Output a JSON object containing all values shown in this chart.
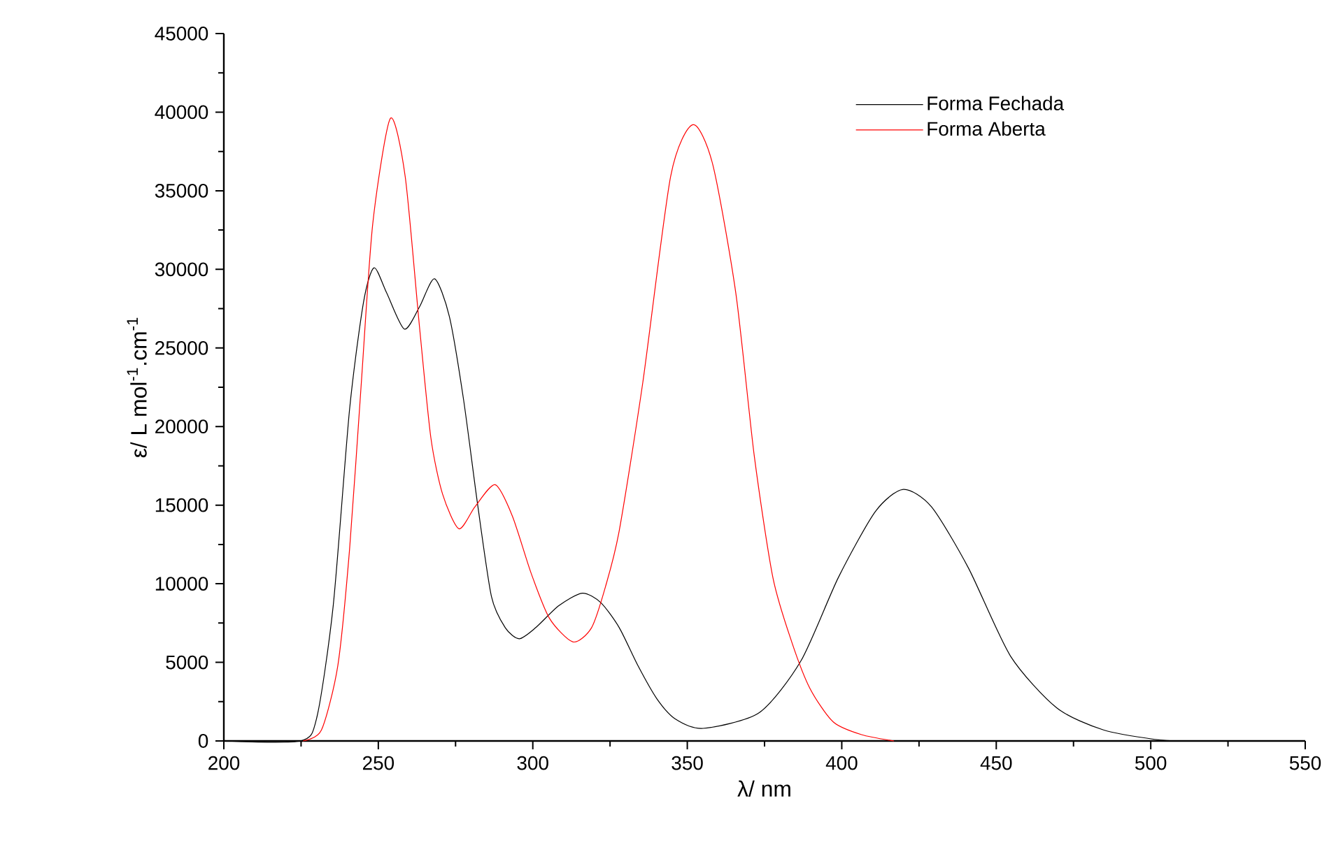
{
  "chart_data": {
    "type": "line",
    "xlabel": "λ/ nm",
    "ylabel": "ε/ L mol$^{-1}$.cm$^{-1}$",
    "xlim": [
      200,
      550
    ],
    "ylim": [
      0,
      45000
    ],
    "xticks": [
      200,
      250,
      300,
      350,
      400,
      450,
      500,
      550
    ],
    "yticks": [
      0,
      5000,
      10000,
      15000,
      20000,
      25000,
      30000,
      35000,
      40000,
      45000
    ],
    "grid": false,
    "legend": "top right",
    "marker": "none",
    "line_style": "solid",
    "series": [
      {
        "name": "Forma Fechada",
        "color": "#000000",
        "x": [
          200,
          224.8,
          230.1,
          235.4,
          240.7,
          245.2,
          248.6,
          252.7,
          258.4,
          263.3,
          268.2,
          273.0,
          277.6,
          282.1,
          286.6,
          291.1,
          295.6,
          300.9,
          308.4,
          316.0,
          322.0,
          328.0,
          334.0,
          340.1,
          346.1,
          355.1,
          373.3,
          386.8,
          398.9,
          410.9,
          419.9,
          429.0,
          441.0,
          454.6,
          469.6,
          484.7,
          501.3,
          510
        ],
        "values": [
          0,
          0,
          1500,
          8600,
          21100,
          27900,
          30100,
          28500,
          26200,
          27600,
          29400,
          27000,
          21700,
          15100,
          9200,
          7200,
          6500,
          7200,
          8600,
          9400,
          8800,
          7200,
          4800,
          2700,
          1400,
          800,
          1800,
          5100,
          10400,
          14600,
          16000,
          14900,
          11000,
          5400,
          2100,
          700,
          100,
          0
        ]
      },
      {
        "name": "Forma Aberta",
        "color": "#ff0000",
        "x": [
          225.6,
          231.6,
          236.9,
          240.7,
          244.4,
          248.2,
          253.9,
          258.7,
          263.3,
          267.0,
          270.8,
          276.1,
          281.3,
          287.8,
          293.4,
          299.4,
          305.4,
          313.0,
          319.0,
          323.5,
          328.0,
          335.6,
          344.6,
          351.8,
          358.2,
          365.7,
          371.7,
          377.7,
          383.8,
          389.8,
          397.3,
          406.4,
          416.9
        ],
        "values": [
          0,
          700,
          4800,
          12200,
          22500,
          32900,
          39600,
          35900,
          26400,
          19300,
          15700,
          13500,
          14900,
          16300,
          14300,
          10700,
          7800,
          6300,
          7200,
          9800,
          13400,
          22800,
          35900,
          39200,
          36700,
          28500,
          18100,
          10400,
          6300,
          3300,
          1200,
          400,
          0
        ]
      }
    ]
  }
}
